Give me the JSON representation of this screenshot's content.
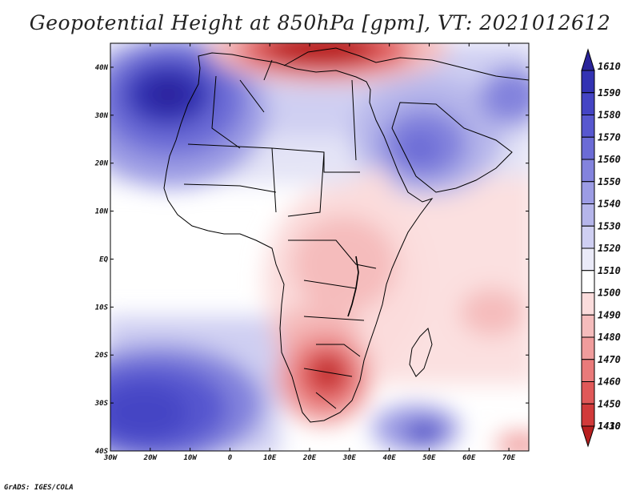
{
  "title": "Geopotential Height at 850hPa [gpm], VT: 2021012612",
  "credit": "GrADS: IGES/COLA",
  "map": {
    "lon_range": [
      -30,
      75
    ],
    "lat_range": [
      -40,
      45
    ],
    "lon_ticks": [
      "30W",
      "20W",
      "10W",
      "0",
      "10E",
      "20E",
      "30E",
      "40E",
      "50E",
      "60E",
      "70E"
    ],
    "lat_ticks": [
      "40S",
      "30S",
      "20S",
      "10S",
      "EQ",
      "10N",
      "20N",
      "30N",
      "40N"
    ],
    "features": [
      {
        "name": "subtropical-high-north-atlantic",
        "lon": -15,
        "lat": 31,
        "level": "high"
      },
      {
        "name": "subtropical-high-south-atlantic",
        "lon": -20,
        "lat": -33,
        "level": "high"
      },
      {
        "name": "arabian-high",
        "lon": 47,
        "lat": 25,
        "level": "high"
      },
      {
        "name": "mediterranean-low",
        "lon": 25,
        "lat": 42,
        "level": "low"
      },
      {
        "name": "southern-africa-low",
        "lon": 25,
        "lat": -24,
        "level": "low"
      },
      {
        "name": "south-indian-ocean-high",
        "lon": 49,
        "lat": -34,
        "level": "high"
      }
    ]
  },
  "colorbar": {
    "levels": [
      "1610",
      "1590",
      "1580",
      "1570",
      "1560",
      "1550",
      "1540",
      "1530",
      "1520",
      "1510",
      "1500",
      "1490",
      "1480",
      "1470",
      "1460",
      "1450",
      "1430",
      "1410"
    ],
    "colors": [
      "#2a249a",
      "#3333b3",
      "#4444c4",
      "#5757cf",
      "#6b6bd6",
      "#8383dd",
      "#9c9ce4",
      "#b5b5ea",
      "#cfcff2",
      "#eaeaf8",
      "#ffffff",
      "#fbdcdc",
      "#f5bcbc",
      "#f09c9c",
      "#e97a7a",
      "#e05858",
      "#d13a3a",
      "#b81f1f"
    ]
  }
}
